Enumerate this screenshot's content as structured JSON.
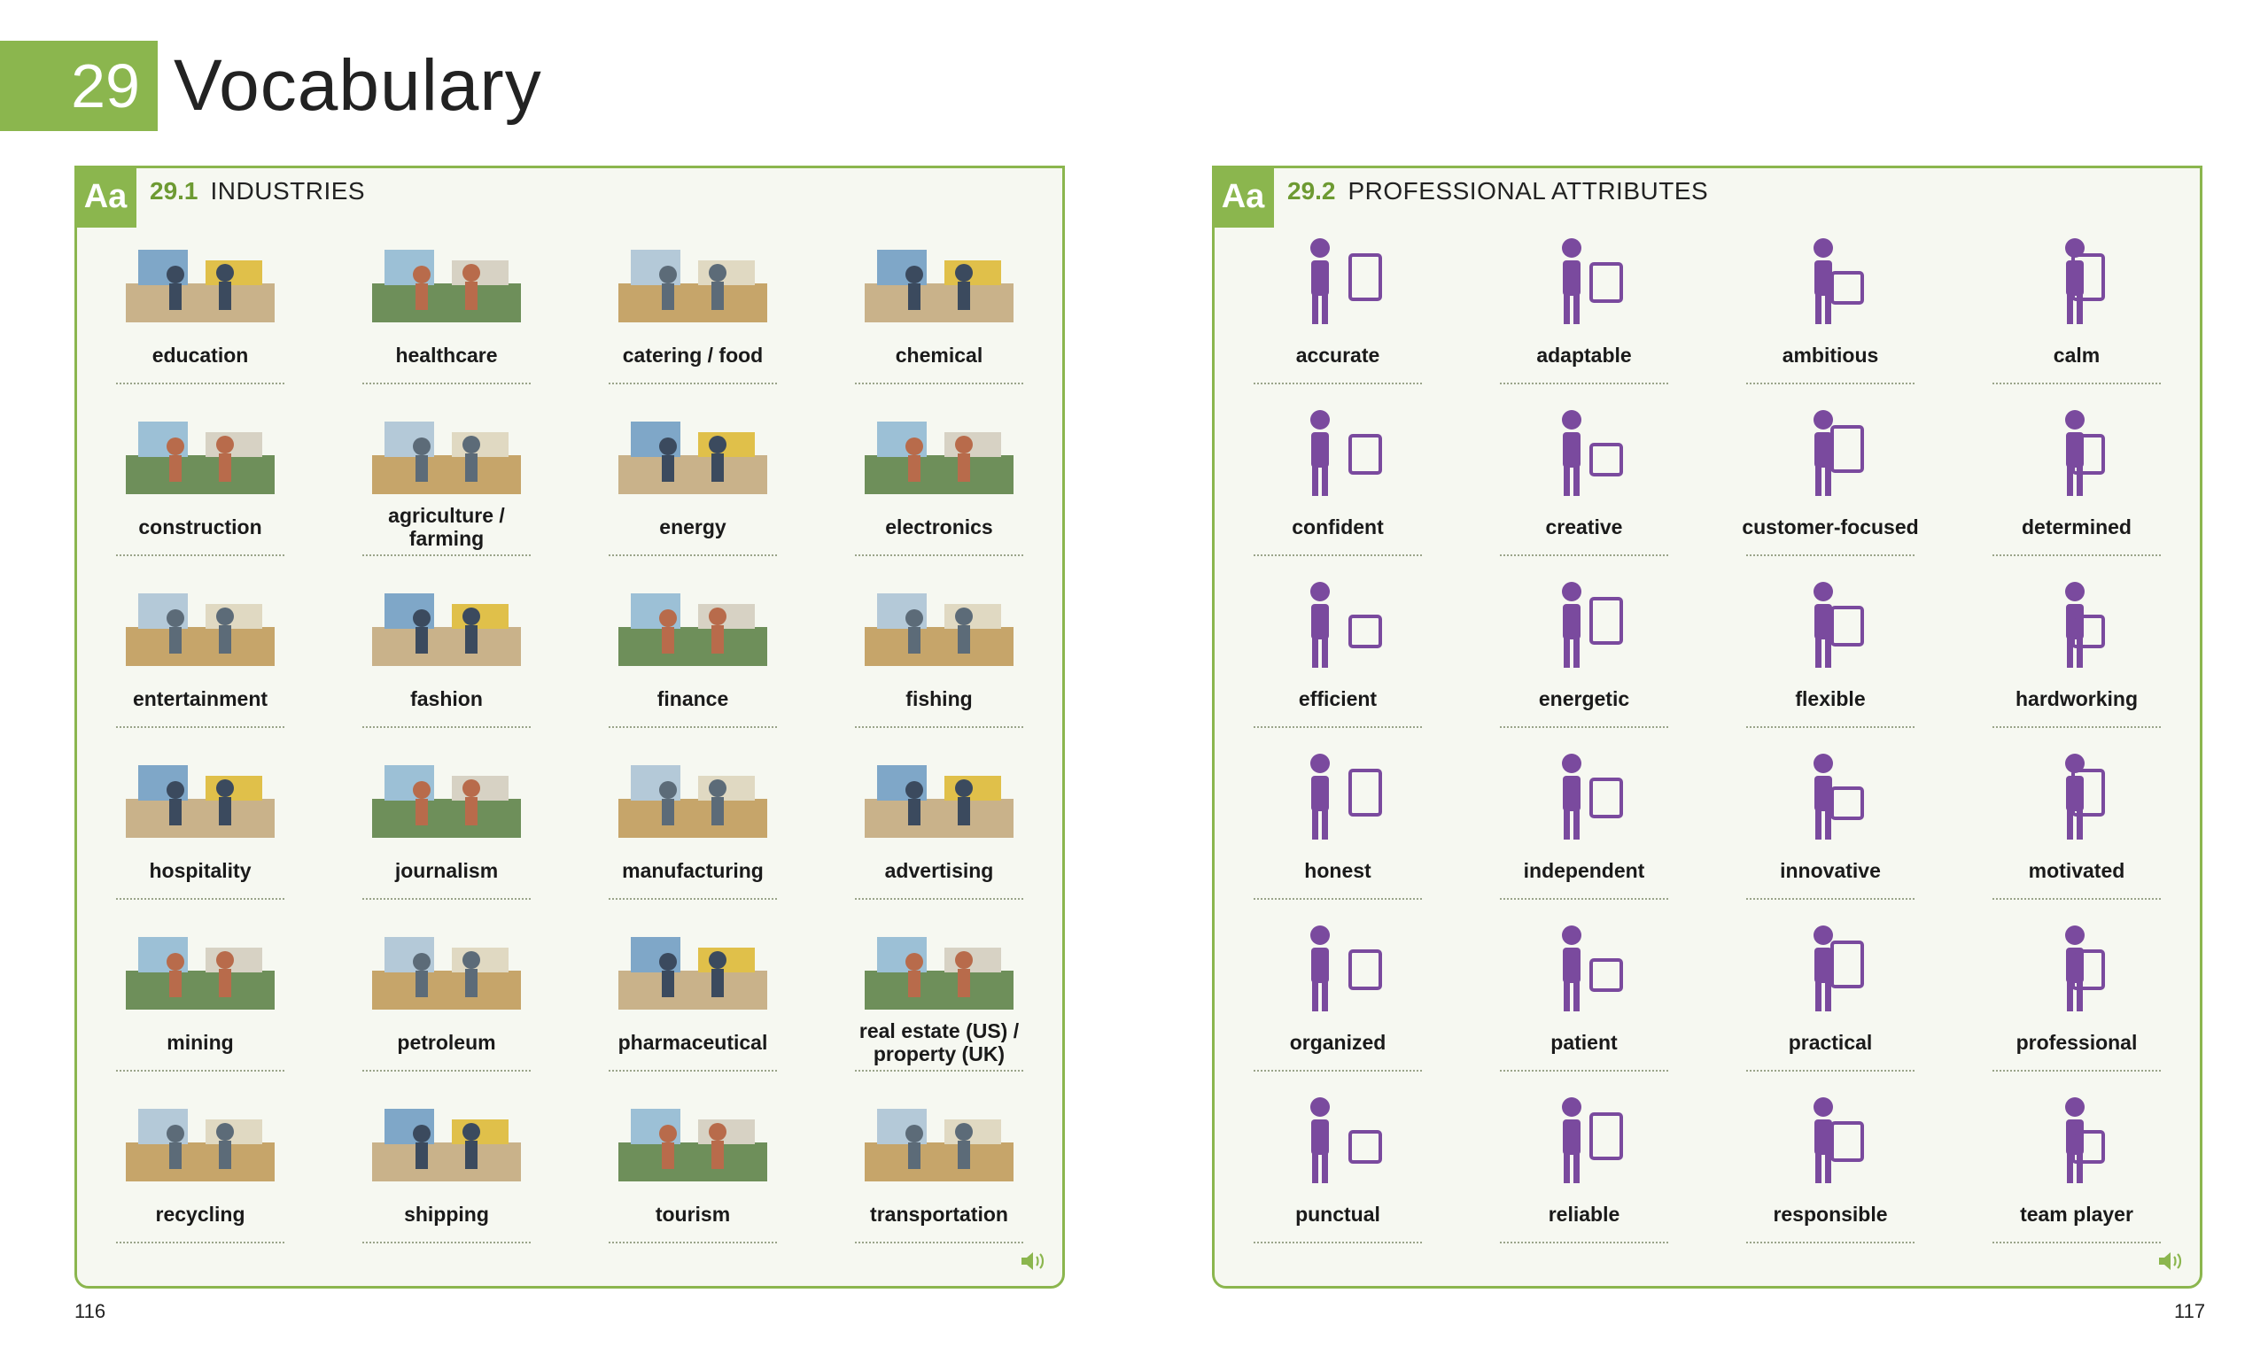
{
  "chapter": {
    "number": "29",
    "title": "Vocabulary"
  },
  "panels": [
    {
      "aa": "Aa",
      "number": "29.1",
      "name": "INDUSTRIES",
      "items": [
        "education",
        "healthcare",
        "catering / food",
        "chemical",
        "construction",
        "agriculture / farming",
        "energy",
        "electronics",
        "entertainment",
        "fashion",
        "finance",
        "fishing",
        "hospitality",
        "journalism",
        "manufacturing",
        "advertising",
        "mining",
        "petroleum",
        "pharmaceutical",
        "real estate (US) / property (UK)",
        "recycling",
        "shipping",
        "tourism",
        "transportation"
      ],
      "page": "116"
    },
    {
      "aa": "Aa",
      "number": "29.2",
      "name": "PROFESSIONAL ATTRIBUTES",
      "items": [
        "accurate",
        "adaptable",
        "ambitious",
        "calm",
        "confident",
        "creative",
        "customer-focused",
        "determined",
        "efficient",
        "energetic",
        "flexible",
        "hardworking",
        "honest",
        "independent",
        "innovative",
        "motivated",
        "organized",
        "patient",
        "practical",
        "professional",
        "punctual",
        "reliable",
        "responsible",
        "team player"
      ],
      "page": "117"
    }
  ],
  "colors": {
    "accent_green": "#8bb64e",
    "attribute_purple": "#7a4a9e",
    "panel_bg": "#f6f8f1"
  },
  "icons": {
    "speaker": "speaker-icon"
  }
}
